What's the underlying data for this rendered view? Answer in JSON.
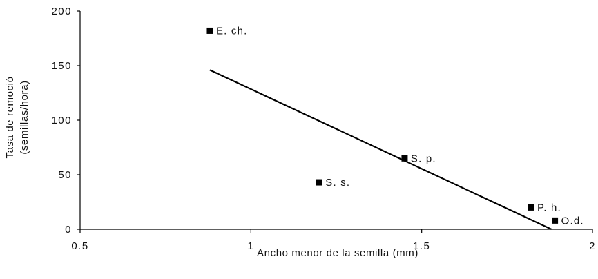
{
  "chart_data": {
    "type": "scatter",
    "title": "",
    "xlabel": "Ancho menor de la semilla (mm)",
    "ylabel_lines": [
      "Tasa de remoció",
      "(semillas/hora)"
    ],
    "xlim": [
      0.5,
      2
    ],
    "ylim": [
      0,
      200
    ],
    "xticks": [
      0.5,
      1,
      1.5,
      2
    ],
    "xtick_labels": [
      "0.5",
      "1",
      "1.5",
      "2"
    ],
    "yticks": [
      0,
      50,
      100,
      150,
      200
    ],
    "ytick_labels": [
      "0",
      "50",
      "100",
      "150",
      "200"
    ],
    "grid": false,
    "legend": "none",
    "points": [
      {
        "label": "E. ch.",
        "x": 0.88,
        "y": 182
      },
      {
        "label": "S. p.",
        "x": 1.45,
        "y": 65
      },
      {
        "label": "S. s.",
        "x": 1.2,
        "y": 43
      },
      {
        "label": "P. h.",
        "x": 1.82,
        "y": 20
      },
      {
        "label": "O.d.",
        "x": 1.89,
        "y": 8
      }
    ],
    "trendline": {
      "x": [
        0.88,
        1.88
      ],
      "y": [
        146,
        0
      ]
    },
    "colors": {
      "marker": "#000000",
      "line": "#000000",
      "axis": "#000000"
    }
  }
}
